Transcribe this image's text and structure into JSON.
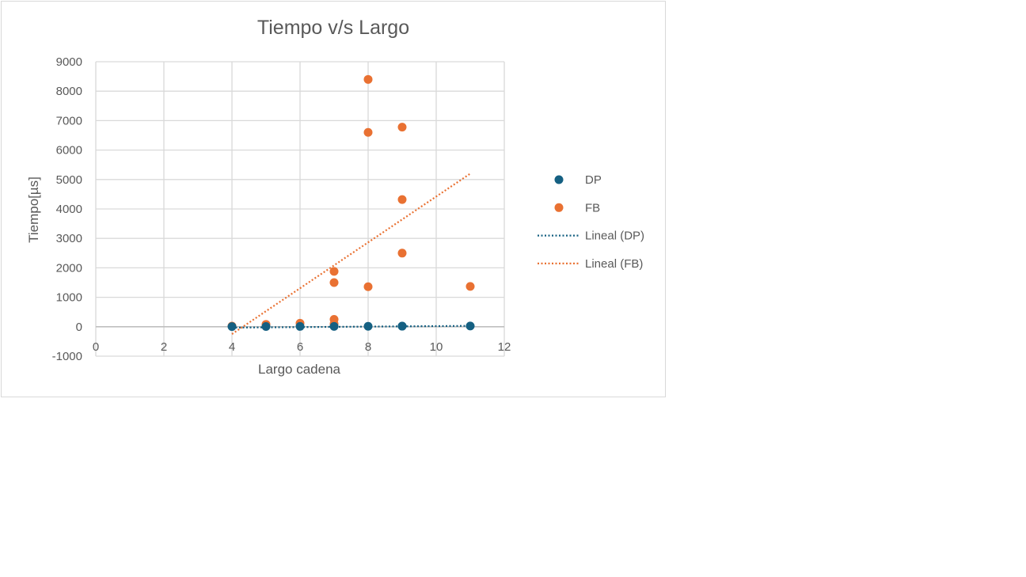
{
  "chart_data": {
    "type": "scatter",
    "title": "Tiempo v/s Largo",
    "xlabel": "Largo cadena",
    "ylabel": "Tiempo[µs]",
    "xlim": [
      0,
      12
    ],
    "ylim": [
      -1000,
      9000
    ],
    "x_ticks": [
      0,
      2,
      4,
      6,
      8,
      10,
      12
    ],
    "y_ticks": [
      -1000,
      0,
      1000,
      2000,
      3000,
      4000,
      5000,
      6000,
      7000,
      8000,
      9000
    ],
    "x_ticks_text": [
      "0",
      "2",
      "4",
      "6",
      "8",
      "10",
      "12"
    ],
    "y_ticks_text": [
      "-1000",
      "0",
      "1000",
      "2000",
      "3000",
      "4000",
      "5000",
      "6000",
      "7000",
      "8000",
      "9000"
    ],
    "grid": true,
    "legend_position": "right",
    "series": [
      {
        "name": "DP",
        "color": "#156082",
        "points": [
          [
            4,
            5
          ],
          [
            5,
            8
          ],
          [
            6,
            10
          ],
          [
            7,
            12
          ],
          [
            8,
            15
          ],
          [
            9,
            18
          ],
          [
            9,
            20
          ],
          [
            11,
            25
          ]
        ]
      },
      {
        "name": "FB",
        "color": "#E97132",
        "points": [
          [
            4,
            20
          ],
          [
            5,
            80
          ],
          [
            6,
            120
          ],
          [
            7,
            100
          ],
          [
            7,
            250
          ],
          [
            7,
            1500
          ],
          [
            7,
            1880
          ],
          [
            8,
            1360
          ],
          [
            8,
            6600
          ],
          [
            8,
            8400
          ],
          [
            9,
            2500
          ],
          [
            9,
            4320
          ],
          [
            9,
            6780
          ],
          [
            11,
            1370
          ]
        ]
      }
    ],
    "trendlines": [
      {
        "name": "Lineal (DP)",
        "color": "#156082",
        "from": [
          4,
          -30
        ],
        "to": [
          11,
          30
        ]
      },
      {
        "name": "Lineal (FB)",
        "color": "#E97132",
        "from": [
          4,
          -250
        ],
        "to": [
          11,
          5200
        ]
      }
    ]
  }
}
